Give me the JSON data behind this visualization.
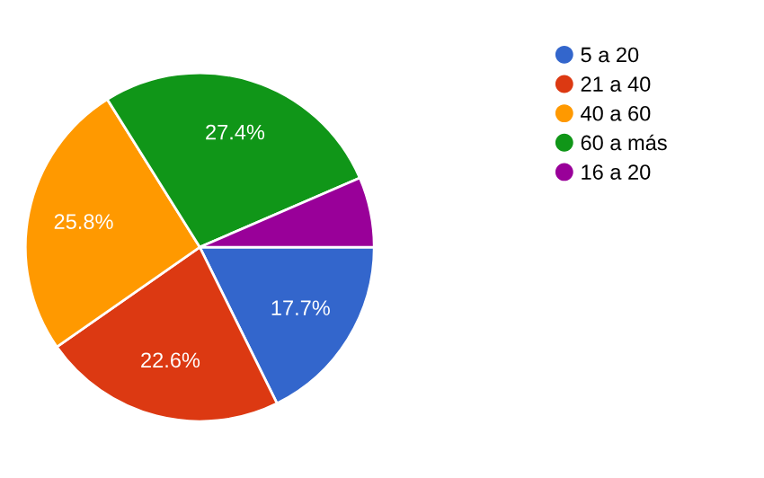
{
  "chart_data": {
    "type": "pie",
    "categories": [
      "5 a 20",
      "21 a 40",
      "40 a 60",
      "60 a más",
      "16 a 20"
    ],
    "values": [
      17.7,
      22.6,
      25.8,
      27.4,
      6.5
    ],
    "colors": [
      "#3366cc",
      "#dc3912",
      "#ff9900",
      "#109618",
      "#990099"
    ],
    "value_labels": [
      "17.7%",
      "22.6%",
      "25.8%",
      "27.4%",
      null
    ],
    "legend": "right"
  }
}
